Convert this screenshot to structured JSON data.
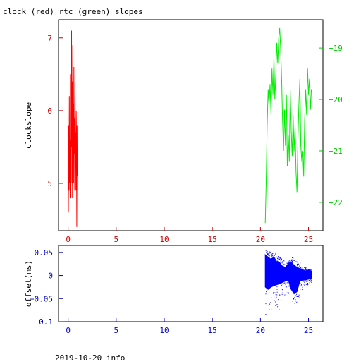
{
  "title": "clock (red) rtc (green) slopes",
  "footer": "2019-10-20 info",
  "colors": {
    "clock": "#ff0000",
    "rtc": "#00ee00",
    "offset": "#0000ff",
    "frame": "#000000",
    "red_axis": "#cc0000",
    "green_axis": "#00cc00",
    "blue_axis": "#0000cc"
  },
  "chart_data": [
    {
      "type": "line",
      "ylabel": "clockslope",
      "xlabel": "",
      "xlim": [
        -1,
        26.5
      ],
      "x_ticks": [
        0,
        5,
        10,
        15,
        20,
        25
      ],
      "ylim": [
        4.35,
        7.25
      ],
      "y_ticks": [
        5,
        6,
        7
      ],
      "y2lim": [
        -22.55,
        -18.45
      ],
      "y2_ticks": [
        -22,
        -21,
        -20,
        -19
      ],
      "series": [
        {
          "axis": "left",
          "color": "#ff0000",
          "x": [
            0.0,
            0.03,
            0.06,
            0.09,
            0.12,
            0.15,
            0.18,
            0.21,
            0.24,
            0.27,
            0.3,
            0.33,
            0.36,
            0.39,
            0.42,
            0.45,
            0.48,
            0.51,
            0.54,
            0.57,
            0.6,
            0.63,
            0.66,
            0.69,
            0.72,
            0.75,
            0.78,
            0.81,
            0.84,
            0.87,
            0.9,
            0.93,
            0.96,
            1.0
          ],
          "y": [
            5.4,
            4.6,
            5.8,
            4.9,
            6.2,
            5.0,
            5.6,
            4.8,
            6.5,
            5.2,
            6.8,
            5.5,
            7.1,
            5.0,
            6.4,
            4.8,
            6.9,
            5.3,
            6.1,
            5.0,
            6.6,
            5.4,
            5.9,
            4.9,
            6.3,
            5.2,
            5.7,
            4.9,
            6.0,
            5.5,
            4.4,
            5.8,
            5.1,
            5.3
          ]
        },
        {
          "axis": "right",
          "color": "#00ee00",
          "x": [
            20.5,
            20.6,
            20.7,
            20.8,
            20.9,
            21.0,
            21.1,
            21.2,
            21.3,
            21.4,
            21.5,
            21.6,
            21.7,
            21.8,
            21.9,
            22.0,
            22.1,
            22.2,
            22.3,
            22.4,
            22.5,
            22.6,
            22.7,
            22.8,
            22.9,
            23.0,
            23.1,
            23.2,
            23.3,
            23.4,
            23.5,
            23.6,
            23.7,
            23.8,
            23.9,
            24.0,
            24.1,
            24.2,
            24.3,
            24.4,
            24.5,
            24.6,
            24.7,
            24.8,
            24.9,
            25.0,
            25.1,
            25.2,
            25.3
          ],
          "y": [
            -22.4,
            -21.6,
            -20.5,
            -19.8,
            -20.1,
            -19.7,
            -20.3,
            -19.4,
            -19.9,
            -19.2,
            -20.0,
            -19.5,
            -18.9,
            -19.3,
            -18.8,
            -18.6,
            -19.0,
            -19.6,
            -20.4,
            -21.0,
            -20.2,
            -20.9,
            -19.9,
            -21.3,
            -20.7,
            -21.2,
            -19.8,
            -20.6,
            -21.1,
            -20.3,
            -21.0,
            -20.5,
            -21.4,
            -21.8,
            -20.8,
            -20.1,
            -19.6,
            -20.9,
            -21.2,
            -21.0,
            -21.5,
            -20.4,
            -19.8,
            -20.3,
            -19.4,
            -19.9,
            -19.6,
            -20.2,
            -19.8
          ]
        }
      ]
    },
    {
      "type": "scatter",
      "ylabel": "offset(ms)",
      "xlabel": "",
      "xlim": [
        -1,
        26.5
      ],
      "x_ticks": [
        0,
        5,
        10,
        15,
        20,
        25
      ],
      "ylim": [
        -0.1,
        0.065
      ],
      "y_ticks": [
        0.05,
        0,
        -0.05,
        -0.1
      ],
      "y_tick_labels": [
        "0.05",
        "0",
        "-0.05",
        "-0.1"
      ],
      "series": [
        {
          "color": "#0000ff",
          "x": [
            20.5,
            20.8,
            21.1,
            21.4,
            21.7,
            22.0,
            22.3,
            22.6,
            22.9,
            23.2,
            23.5,
            23.8,
            24.1,
            24.4,
            24.7,
            25.0,
            25.3
          ],
          "y_band_top": [
            0.045,
            0.04,
            0.035,
            0.04,
            0.03,
            0.028,
            0.02,
            0.018,
            0.025,
            0.03,
            0.022,
            0.018,
            0.015,
            0.012,
            0.01,
            0.012,
            0.01
          ],
          "y_band_bottom": [
            -0.025,
            -0.03,
            -0.025,
            -0.022,
            -0.02,
            -0.018,
            -0.015,
            -0.012,
            -0.01,
            -0.03,
            -0.04,
            -0.035,
            -0.012,
            -0.01,
            -0.01,
            -0.008,
            -0.006
          ],
          "outlier_top": [
            0.055,
            0.052,
            0.05,
            0.048,
            0.046,
            0.04,
            0.035,
            0.03,
            0.034,
            0.04,
            0.035,
            0.03,
            0.02,
            0.018,
            0.015,
            0.014,
            0.012
          ],
          "outlier_bottom": [
            -0.085,
            -0.08,
            -0.075,
            -0.07,
            -0.075,
            -0.06,
            -0.045,
            -0.04,
            -0.03,
            -0.055,
            -0.06,
            -0.05,
            -0.03,
            -0.025,
            -0.02,
            -0.015,
            -0.01
          ]
        }
      ]
    }
  ]
}
